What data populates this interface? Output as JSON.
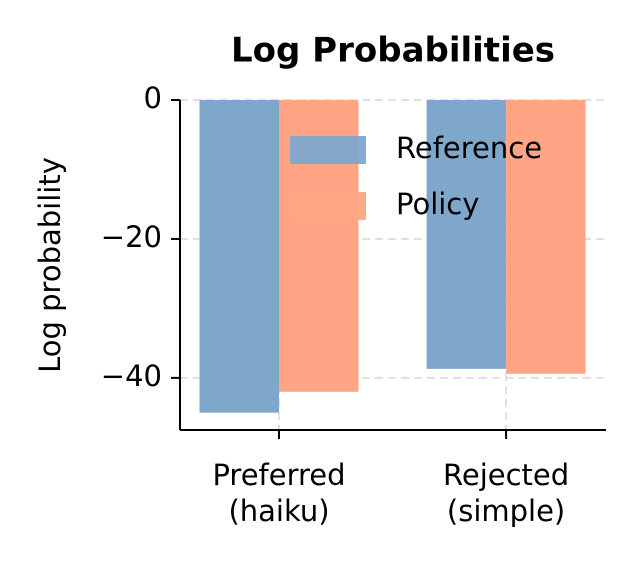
{
  "chart_data": {
    "type": "bar",
    "title": "Log Probabilities",
    "y_label": "Log probability",
    "categories": [
      "Preferred\n(haiku)",
      "Rejected\n(simple)"
    ],
    "series": [
      {
        "name": "Reference",
        "color": "#7fa7cc",
        "values": [
          -45,
          -38.7
        ]
      },
      {
        "name": "Policy",
        "color": "#ffa585",
        "values": [
          -42,
          -39.4
        ]
      }
    ],
    "ylim": [
      -47.5,
      0
    ],
    "yticks": [
      {
        "value": -40,
        "label": "−40"
      },
      {
        "value": -20,
        "label": "−20"
      },
      0
    ],
    "grid": true,
    "legend": "upper right"
  }
}
